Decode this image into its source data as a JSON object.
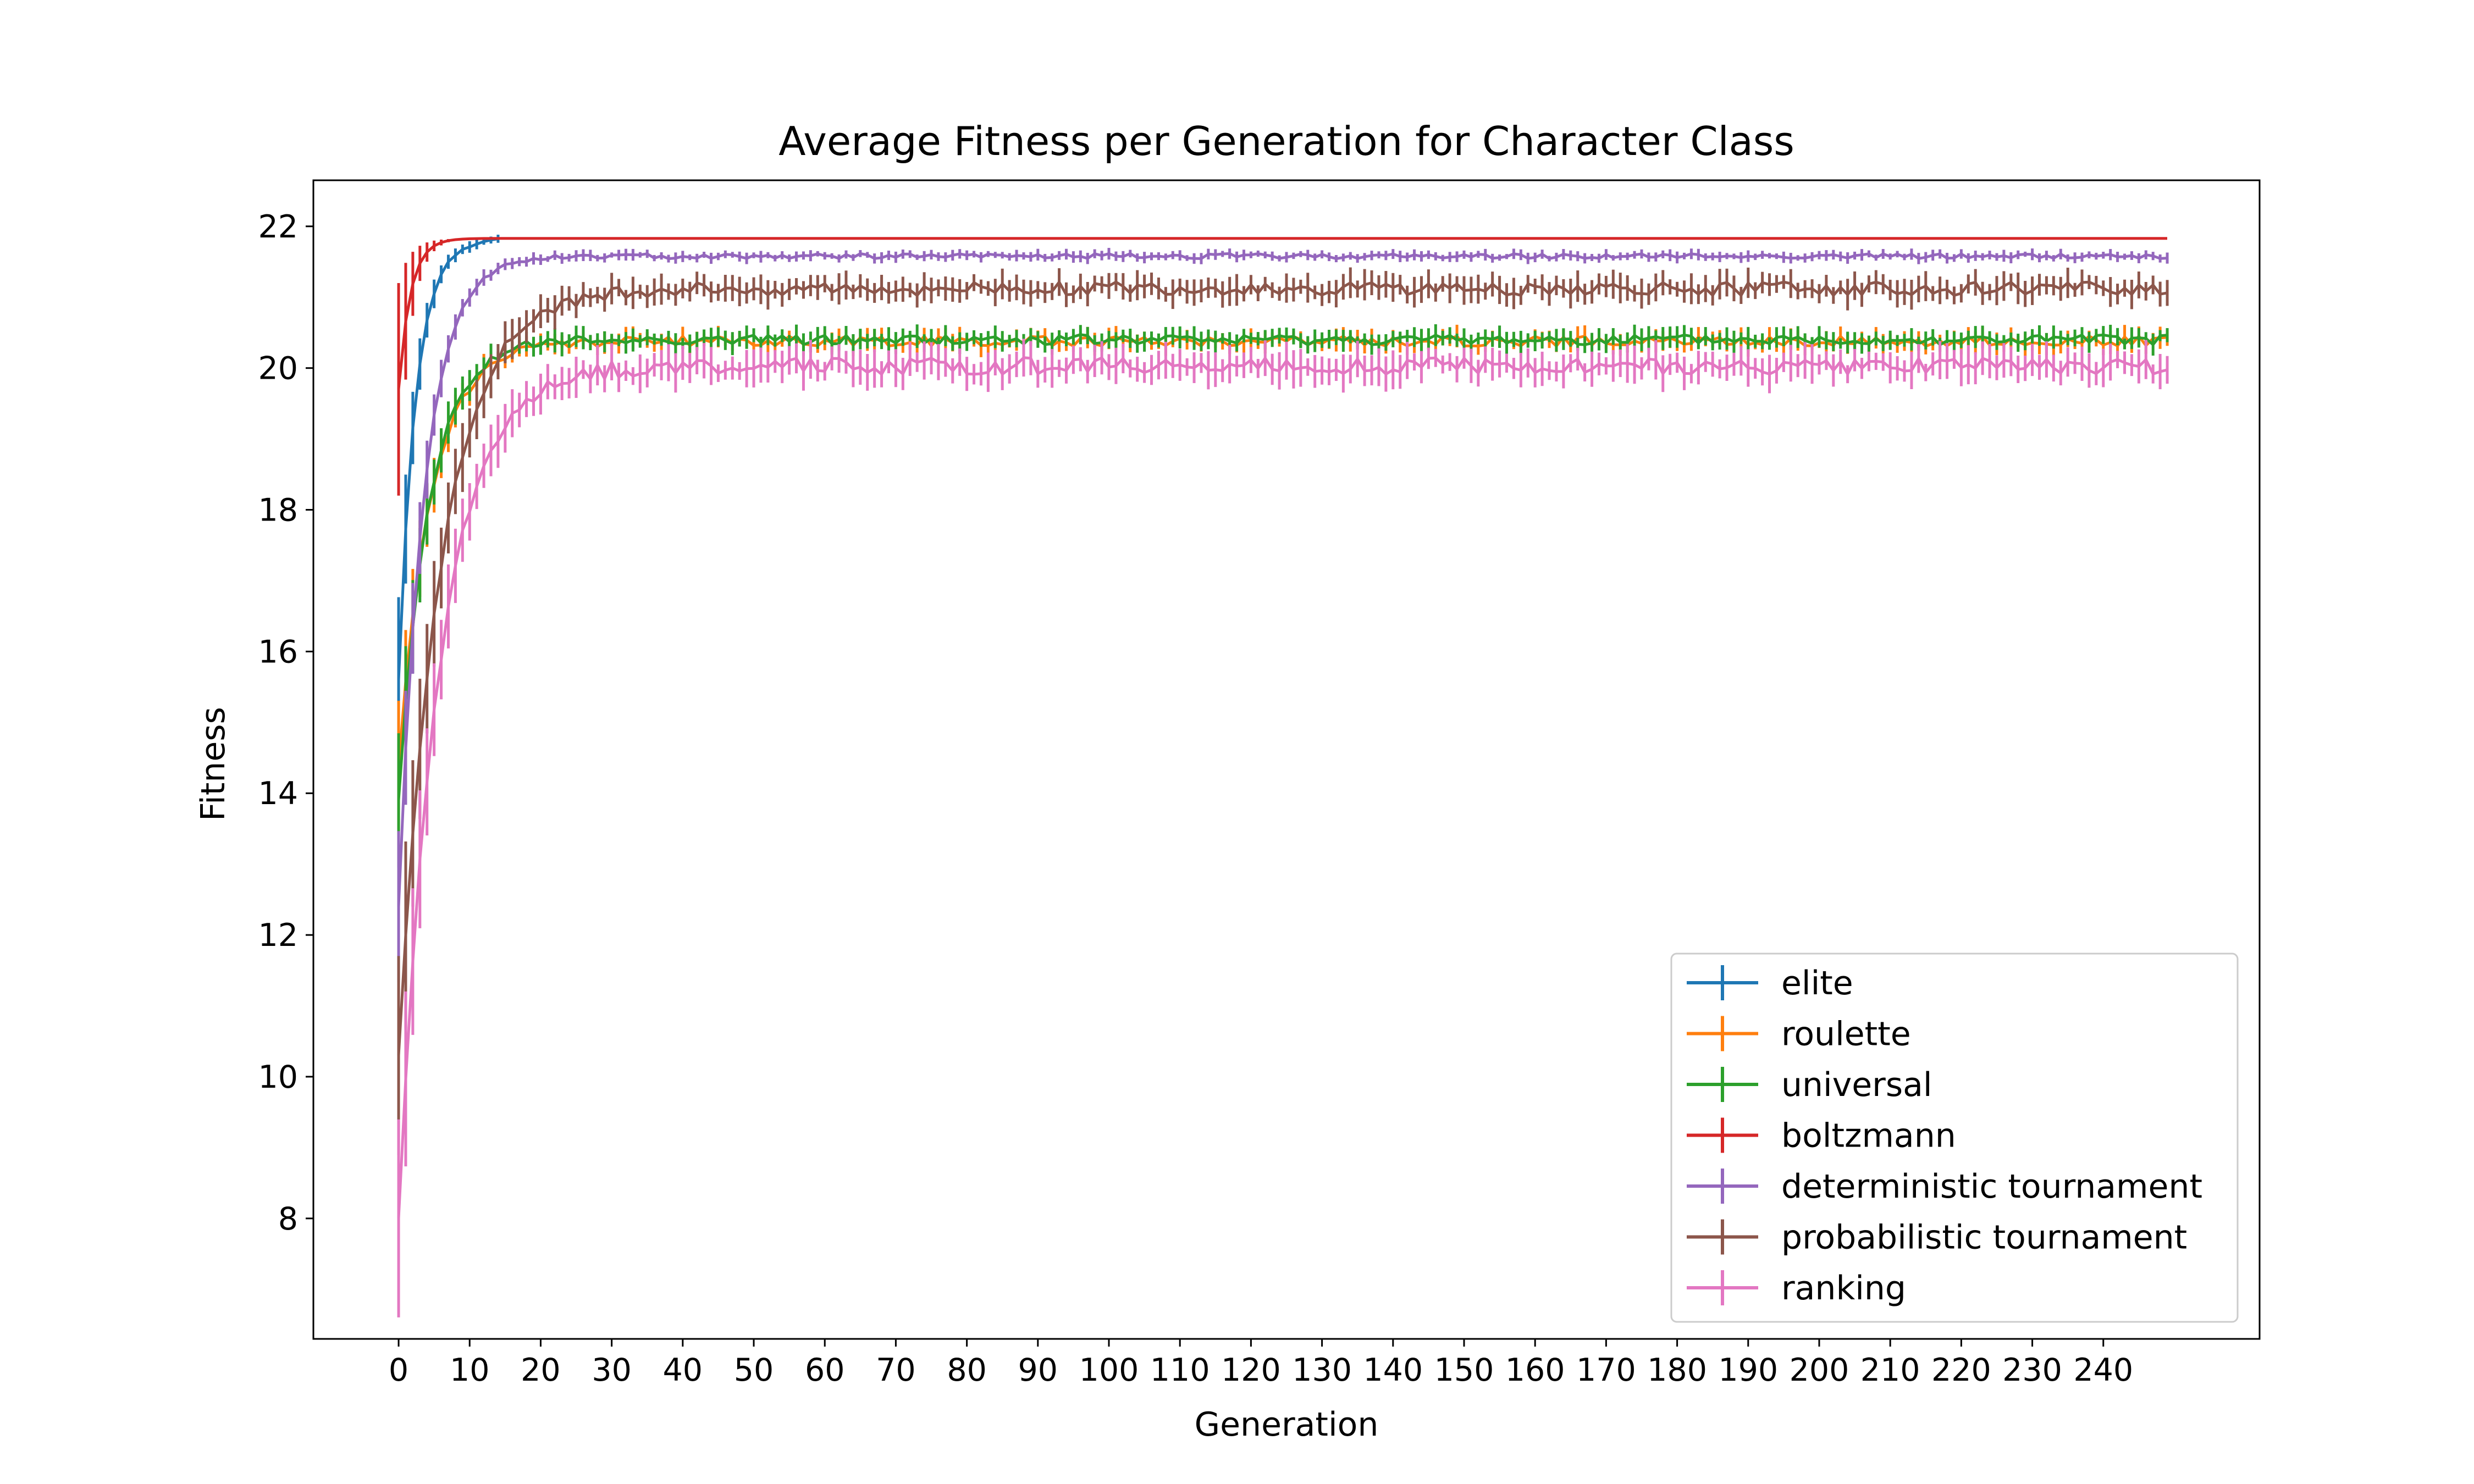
{
  "chart_data": {
    "type": "line",
    "title": "Average Fitness per Generation for Character Class",
    "xlabel": "Generation",
    "ylabel": "Fitness",
    "xlim": [
      -12,
      262
    ],
    "ylim": [
      6.3,
      22.65
    ],
    "x_ticks": [
      0,
      10,
      20,
      30,
      40,
      50,
      60,
      70,
      80,
      90,
      100,
      110,
      120,
      130,
      140,
      150,
      160,
      170,
      180,
      190,
      200,
      210,
      220,
      230,
      240
    ],
    "y_ticks": [
      8,
      10,
      12,
      14,
      16,
      18,
      20,
      22
    ],
    "x_range": [
      0,
      249
    ],
    "grid": false,
    "legend_position": "lower-right",
    "error_bars": true,
    "series": [
      {
        "name": "elite",
        "color": "#1f77b4",
        "start": 15.6,
        "plateau": 21.83,
        "rate": 0.42,
        "ramp_err": 1.1,
        "plateau_err": 0.05,
        "x_end": 14
      },
      {
        "name": "roulette",
        "color": "#ff7f0e",
        "start": 14.4,
        "plateau": 20.38,
        "rate": 0.22,
        "ramp_err": 0.8,
        "plateau_err": 0.12,
        "x_end": 249
      },
      {
        "name": "universal",
        "color": "#2ca02c",
        "start": 13.9,
        "plateau": 20.4,
        "rate": 0.24,
        "ramp_err": 0.8,
        "plateau_err": 0.12,
        "x_end": 249
      },
      {
        "name": "boltzmann",
        "color": "#d62728",
        "start": 19.7,
        "plateau": 21.83,
        "rate": 0.6,
        "ramp_err": 1.5,
        "plateau_err": 0.0,
        "x_end": 249
      },
      {
        "name": "deterministic tournament",
        "color": "#9467bd",
        "start": 12.4,
        "plateau": 21.58,
        "rate": 0.28,
        "ramp_err": 1.0,
        "plateau_err": 0.06,
        "x_end": 249
      },
      {
        "name": "probabilistic tournament",
        "color": "#8c564b",
        "start": 10.3,
        "plateau": 21.12,
        "rate": 0.17,
        "ramp_err": 1.3,
        "plateau_err": 0.16,
        "x_end": 249
      },
      {
        "name": "ranking",
        "color": "#e377c2",
        "start": 8.0,
        "plateau": 20.03,
        "rate": 0.18,
        "ramp_err": 1.2,
        "plateau_err": 0.2,
        "x_end": 249
      }
    ]
  }
}
